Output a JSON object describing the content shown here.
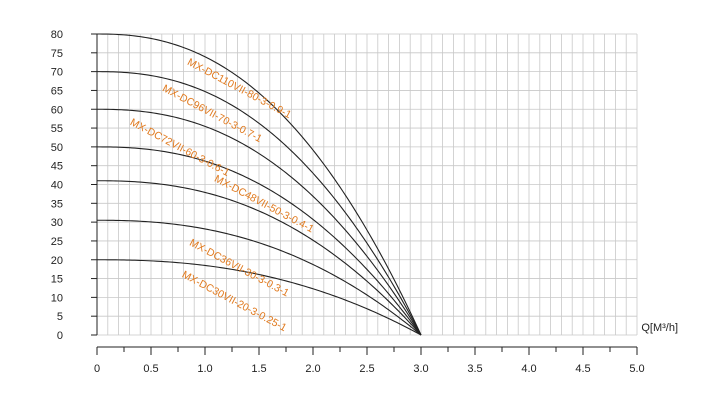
{
  "chart_data": {
    "type": "line",
    "title": "",
    "xlabel": "Q[M³/h]",
    "ylabel": "",
    "xlim": [
      0,
      5.0
    ],
    "ylim": [
      0,
      80
    ],
    "x_ticks": [
      "0",
      "0.5",
      "1.0",
      "1.5",
      "2.0",
      "2.5",
      "3.0",
      "3.5",
      "4.0",
      "4.5",
      "5.0"
    ],
    "y_ticks": [
      "0",
      "5",
      "10",
      "15",
      "20",
      "25",
      "30",
      "35",
      "40",
      "45",
      "50",
      "55",
      "60",
      "65",
      "70",
      "75",
      "80"
    ],
    "grid": true,
    "colors": {
      "curve": "#222222",
      "label": "#e07a1f",
      "grid": "#c8c8c8",
      "axis": "#222222"
    },
    "x_max_flow": 3.0,
    "series": [
      {
        "name": "MX-DC110VII-80-3-0.9-1",
        "shutoff_head": 80,
        "label_pos": {
          "x": 0.83,
          "y": 72.0
        }
      },
      {
        "name": "MX-DC96VII-70-3-0.7-1",
        "shutoff_head": 70,
        "label_pos": {
          "x": 0.6,
          "y": 65.0
        }
      },
      {
        "name": "MX-DC72VII-60-3-0.6-1",
        "shutoff_head": 60,
        "label_pos": {
          "x": 0.3,
          "y": 56.0
        }
      },
      {
        "name": "MX-DC48VII-50-3-0.4-1",
        "shutoff_head": 50,
        "label_pos": {
          "x": 1.08,
          "y": 41.0
        }
      },
      {
        "name": "",
        "shutoff_head": 41,
        "label_pos": null
      },
      {
        "name": "MX-DC36VII-30-3-0.3-1",
        "shutoff_head": 30.5,
        "label_pos": {
          "x": 0.85,
          "y": 24.0
        }
      },
      {
        "name": "MX-DC30VII-20-3-0.25-1",
        "shutoff_head": 20,
        "label_pos": {
          "x": 0.78,
          "y": 15.5
        }
      }
    ]
  }
}
